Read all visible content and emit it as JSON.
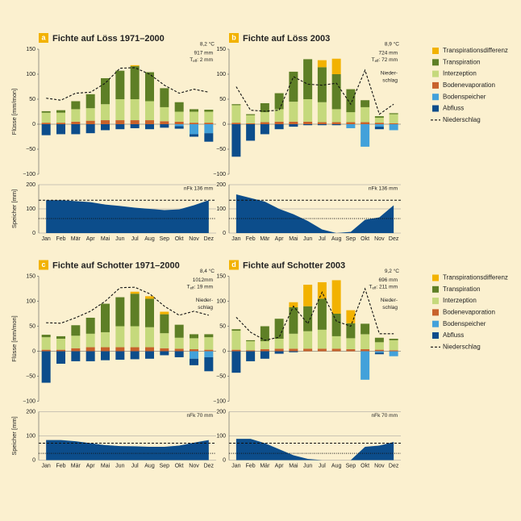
{
  "chart_data": [
    {
      "type": "bar",
      "letter": "a",
      "title": "Fichte auf Löss 1971–2000",
      "temperature": "8,2 °C",
      "precipitation": "917 mm",
      "teff": {
        "symbol": "T",
        "subscript": "eff",
        "value": ": 2 mm"
      },
      "ylabel": "Flüsse [mm/mon]",
      "categories": [
        "Jan",
        "Feb",
        "Mär",
        "Apr",
        "Mai",
        "Jun",
        "Jul",
        "Aug",
        "Sep",
        "Okt",
        "Nov",
        "Dez"
      ],
      "ylim": [
        -100,
        150
      ],
      "yticks": [
        150,
        100,
        50,
        0,
        {
          "value": -50,
          "label": "−50"
        },
        {
          "value": -100,
          "label": "−100"
        }
      ],
      "series": [
        {
          "color": "#f2b200",
          "values": [
            0,
            0,
            0,
            0,
            0,
            0,
            2,
            0,
            0,
            0,
            0,
            0
          ]
        },
        {
          "color": "#5e7f26",
          "values": [
            3,
            5,
            16,
            28,
            52,
            57,
            66,
            58,
            38,
            19,
            5,
            4
          ]
        },
        {
          "color": "#c5d97c",
          "values": [
            20,
            20,
            25,
            25,
            32,
            42,
            42,
            38,
            28,
            20,
            22,
            22
          ]
        },
        {
          "color": "#c8622b",
          "values": [
            3,
            3,
            5,
            7,
            8,
            8,
            8,
            8,
            6,
            5,
            3,
            3
          ]
        },
        {
          "color": "#42a1da",
          "values": [
            0,
            0,
            0,
            0,
            0,
            0,
            0,
            0,
            0,
            -4,
            -20,
            -18
          ]
        },
        {
          "color": "#0c4d8b",
          "values": [
            -22,
            -20,
            -20,
            -18,
            -12,
            -10,
            -8,
            -10,
            -7,
            -5,
            -5,
            -17
          ]
        }
      ],
      "line": {
        "color": "#111111",
        "values": [
          52,
          48,
          62,
          64,
          82,
          112,
          113,
          100,
          78,
          62,
          70,
          64
        ]
      },
      "storage": {
        "type": "area",
        "ylabel": "Speicher [mm]",
        "ylim": [
          0,
          200
        ],
        "yticks": [
          0,
          100,
          200
        ],
        "color": "#0c4d8b",
        "values": [
          136,
          136,
          132,
          128,
          118,
          112,
          105,
          100,
          95,
          98,
          115,
          136
        ],
        "capacity": 136,
        "capacity_label": "nFk 136 mm",
        "threshold": 60
      }
    },
    {
      "type": "bar",
      "letter": "b",
      "title": "Fichte auf Löss 2003",
      "temperature": "8,9 °C",
      "precipitation": "724 mm",
      "teff": {
        "symbol": "T",
        "subscript": "eff",
        "value": ": 72 mm"
      },
      "precip_label": [
        "Nieder-",
        "schlag"
      ],
      "categories": [
        "Jan",
        "Feb",
        "Mär",
        "Apr",
        "Mai",
        "Jun",
        "Jul",
        "Aug",
        "Sep",
        "Okt",
        "Nov",
        "Dez"
      ],
      "ylim": [
        -100,
        150
      ],
      "yticks": [
        150,
        100,
        50,
        0,
        {
          "value": -50,
          "label": "−50"
        },
        {
          "value": -100,
          "label": "−100"
        }
      ],
      "series": [
        {
          "name": "Transpirationsdifferenz",
          "color": "#f2b200",
          "values": [
            0,
            0,
            0,
            0,
            0,
            0,
            14,
            31,
            0,
            0,
            0,
            0
          ]
        },
        {
          "name": "Transpiration",
          "color": "#5e7f26",
          "values": [
            2,
            2,
            18,
            32,
            60,
            80,
            70,
            70,
            46,
            14,
            3,
            2
          ]
        },
        {
          "name": "Interzeption",
          "color": "#c5d97c",
          "values": [
            35,
            16,
            20,
            25,
            40,
            45,
            40,
            26,
            20,
            30,
            10,
            18
          ]
        },
        {
          "name": "Bodenevaporation",
          "color": "#c8622b",
          "values": [
            3,
            2,
            4,
            5,
            5,
            5,
            4,
            4,
            4,
            4,
            3,
            2
          ]
        },
        {
          "name": "Bodenspeicher",
          "color": "#42a1da",
          "values": [
            0,
            0,
            0,
            0,
            0,
            0,
            0,
            0,
            -8,
            -45,
            -5,
            -12
          ]
        },
        {
          "name": "Abfluss",
          "color": "#0c4d8b",
          "values": [
            -65,
            -33,
            -20,
            -10,
            -5,
            -2,
            -2,
            -2,
            0,
            0,
            -5,
            0
          ]
        }
      ],
      "line": {
        "name": "Niederschlag",
        "color": "#111111",
        "values": [
          75,
          28,
          26,
          28,
          95,
          80,
          78,
          82,
          40,
          108,
          20,
          40
        ]
      },
      "storage": {
        "type": "area",
        "ylim": [
          0,
          200
        ],
        "yticks": [
          0,
          100,
          200
        ],
        "color": "#0c4d8b",
        "values": [
          160,
          145,
          130,
          100,
          78,
          50,
          15,
          0,
          5,
          55,
          65,
          115
        ],
        "capacity": 136,
        "capacity_label": "nFk 136 mm",
        "threshold": 60
      }
    },
    {
      "type": "bar",
      "letter": "c",
      "title": "Fichte auf Schotter 1971–2000",
      "temperature": "8,4 °C",
      "precipitation": "1012mm",
      "teff": {
        "symbol": "T",
        "subscript": "eff",
        "value": ": 19 mm"
      },
      "precip_label": [
        "Nieder-",
        "schlag"
      ],
      "ylabel": "Flüsse [mm/mon]",
      "categories": [
        "Jan",
        "Feb",
        "Mär",
        "Apr",
        "Mai",
        "Jun",
        "Jul",
        "Aug",
        "Sep",
        "Okt",
        "Nov",
        "Dez"
      ],
      "ylim": [
        -100,
        150
      ],
      "yticks": [
        150,
        100,
        50,
        0,
        {
          "value": -50,
          "label": "−50"
        },
        {
          "value": -100,
          "label": "−100"
        }
      ],
      "series": [
        {
          "color": "#f2b200",
          "values": [
            0,
            0,
            0,
            0,
            0,
            0,
            4,
            5,
            5,
            0,
            0,
            0
          ]
        },
        {
          "color": "#5e7f26",
          "values": [
            5,
            5,
            21,
            32,
            57,
            58,
            65,
            57,
            38,
            26,
            8,
            6
          ]
        },
        {
          "color": "#c5d97c",
          "values": [
            25,
            22,
            25,
            27,
            30,
            42,
            42,
            40,
            30,
            22,
            22,
            25
          ]
        },
        {
          "color": "#c8622b",
          "values": [
            3,
            3,
            6,
            8,
            8,
            8,
            8,
            8,
            6,
            5,
            4,
            3
          ]
        },
        {
          "color": "#42a1da",
          "values": [
            0,
            0,
            0,
            0,
            0,
            0,
            0,
            0,
            0,
            0,
            -15,
            -12
          ]
        },
        {
          "color": "#0c4d8b",
          "values": [
            -63,
            -25,
            -20,
            -20,
            -18,
            -17,
            -16,
            -15,
            -8,
            -12,
            -13,
            -28
          ]
        }
      ],
      "line": {
        "color": "#111111",
        "values": [
          57,
          56,
          67,
          80,
          100,
          127,
          128,
          115,
          90,
          72,
          80,
          72
        ]
      },
      "storage": {
        "type": "area",
        "ylabel": "Speicher [mm]",
        "ylim": [
          0,
          200
        ],
        "yticks": [
          0,
          100,
          200
        ],
        "color": "#0c4d8b",
        "values": [
          83,
          83,
          78,
          70,
          62,
          58,
          57,
          55,
          55,
          60,
          72,
          83
        ],
        "capacity": 70,
        "capacity_label": "nFk 70 mm",
        "threshold": 28
      }
    },
    {
      "type": "bar",
      "letter": "d",
      "title": "Fichte auf Schotter 2003",
      "temperature": "9,2 °C",
      "precipitation": "696 mm",
      "teff": {
        "symbol": "T",
        "subscript": "eff",
        "value": ": 211 mm"
      },
      "precip_label": [
        "Nieder-",
        "schlag"
      ],
      "categories": [
        "Jan",
        "Feb",
        "Mär",
        "Apr",
        "Mai",
        "Jun",
        "Jul",
        "Aug",
        "Sep",
        "Okt",
        "Nov",
        "Dez"
      ],
      "ylim": [
        -100,
        150
      ],
      "yticks": [
        150,
        100,
        50,
        0,
        {
          "value": -50,
          "label": "−50"
        },
        {
          "value": -100,
          "label": "−100"
        }
      ],
      "series": [
        {
          "name": "Transpirationsdifferenz",
          "color": "#f2b200",
          "values": [
            0,
            0,
            0,
            0,
            10,
            43,
            33,
            67,
            26,
            0,
            0,
            0
          ]
        },
        {
          "name": "Transpiration",
          "color": "#5e7f26",
          "values": [
            3,
            2,
            30,
            40,
            53,
            50,
            62,
            45,
            30,
            21,
            9,
            3
          ]
        },
        {
          "name": "Interzeption",
          "color": "#c5d97c",
          "values": [
            38,
            18,
            16,
            20,
            30,
            35,
            38,
            25,
            22,
            30,
            15,
            20
          ]
        },
        {
          "name": "Bodenevaporation",
          "color": "#c8622b",
          "values": [
            3,
            2,
            4,
            5,
            5,
            5,
            5,
            5,
            4,
            4,
            3,
            2
          ]
        },
        {
          "name": "Bodenspeicher",
          "color": "#42a1da",
          "values": [
            0,
            0,
            0,
            0,
            0,
            0,
            0,
            0,
            0,
            -57,
            -3,
            -10
          ]
        },
        {
          "name": "Abfluss",
          "color": "#0c4d8b",
          "values": [
            -43,
            -20,
            -15,
            -5,
            -2,
            0,
            0,
            0,
            0,
            0,
            -3,
            0
          ]
        }
      ],
      "line": {
        "name": "Niederschlag",
        "color": "#111111",
        "values": [
          68,
          38,
          22,
          28,
          90,
          55,
          118,
          60,
          50,
          125,
          35,
          35
        ]
      },
      "storage": {
        "type": "area",
        "ylim": [
          0,
          200
        ],
        "yticks": [
          0,
          100,
          200
        ],
        "color": "#0c4d8b",
        "values": [
          88,
          88,
          70,
          45,
          20,
          5,
          0,
          0,
          0,
          55,
          60,
          75
        ],
        "capacity": 70,
        "capacity_label": "nFk 70 mm",
        "threshold": 28
      }
    }
  ]
}
